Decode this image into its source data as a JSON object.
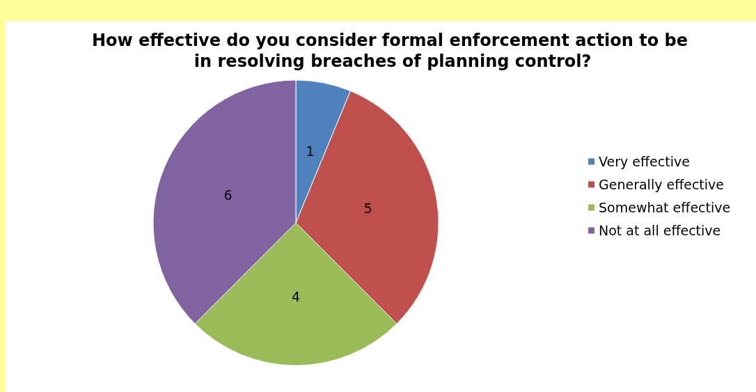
{
  "chart_data": {
    "type": "pie",
    "title": "How effective do you consider formal enforcement action to be in resolving breaches of planning control?",
    "categories": [
      "Very effective",
      "Generally effective",
      "Somewhat effective",
      "Not at all effective"
    ],
    "values": [
      1,
      5,
      4,
      6
    ],
    "colors": [
      "#4f81bd",
      "#c0504d",
      "#9bbb59",
      "#8064a2"
    ],
    "data_labels": true,
    "legend": "right"
  }
}
